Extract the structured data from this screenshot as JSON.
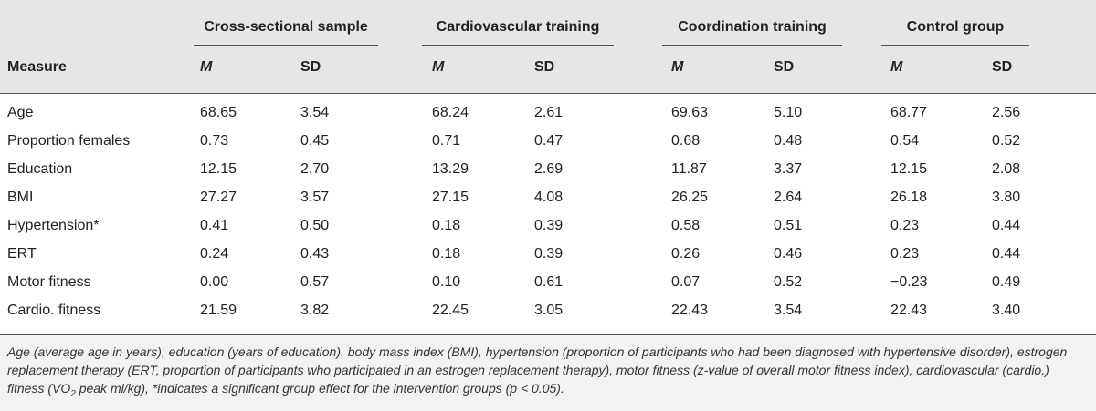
{
  "table": {
    "groups": [
      {
        "label": "Cross-sectional sample"
      },
      {
        "label": "Cardiovascular training"
      },
      {
        "label": "Coordination training"
      },
      {
        "label": "Control group"
      }
    ],
    "measure_header": "Measure",
    "m_label": "M",
    "sd_label": "SD",
    "rows": [
      {
        "measure": "Age",
        "values": [
          "68.65",
          "3.54",
          "68.24",
          "2.61",
          "69.63",
          "5.10",
          "68.77",
          "2.56"
        ]
      },
      {
        "measure": "Proportion females",
        "values": [
          "0.73",
          "0.45",
          "0.71",
          "0.47",
          "0.68",
          "0.48",
          "0.54",
          "0.52"
        ]
      },
      {
        "measure": "Education",
        "values": [
          "12.15",
          "2.70",
          "13.29",
          "2.69",
          "11.87",
          "3.37",
          "12.15",
          "2.08"
        ]
      },
      {
        "measure": "BMI",
        "values": [
          "27.27",
          "3.57",
          "27.15",
          "4.08",
          "26.25",
          "2.64",
          "26.18",
          "3.80"
        ]
      },
      {
        "measure": "Hypertension*",
        "values": [
          "0.41",
          "0.50",
          "0.18",
          "0.39",
          "0.58",
          "0.51",
          "0.23",
          "0.44"
        ]
      },
      {
        "measure": "ERT",
        "values": [
          "0.24",
          "0.43",
          "0.18",
          "0.39",
          "0.26",
          "0.46",
          "0.23",
          "0.44"
        ]
      },
      {
        "measure": "Motor fitness",
        "values": [
          "0.00",
          "0.57",
          "0.10",
          "0.61",
          "0.07",
          "0.52",
          "−0.23",
          "0.49"
        ]
      },
      {
        "measure": "Cardio. fitness",
        "values": [
          "21.59",
          "3.82",
          "22.45",
          "3.05",
          "22.43",
          "3.54",
          "22.43",
          "3.40"
        ]
      }
    ]
  },
  "footnote": {
    "text_before_sub": "Age (average age in years), education (years of education), body mass index (BMI), hypertension (proportion of participants who had been diagnosed with hypertensive disorder), estrogen replacement therapy (ERT, proportion of participants who participated in an estrogen replacement therapy), motor fitness (z-value of overall motor fitness index), cardiovascular (cardio.) fitness (VO",
    "sub": "2",
    "text_after_sub": " peak ml/kg), *indicates a significant group effect for the intervention groups (p < 0.05)."
  }
}
